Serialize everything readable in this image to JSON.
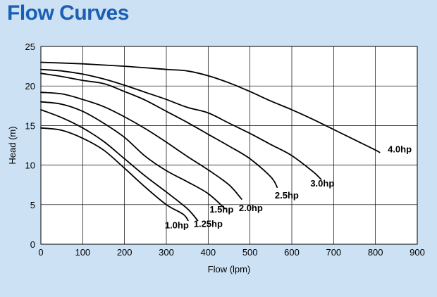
{
  "title": "Flow Curves",
  "chart_data": {
    "type": "line",
    "xlabel": "Flow (lpm)",
    "ylabel": "Head (m)",
    "xlim": [
      0,
      900
    ],
    "ylim": [
      0,
      25
    ],
    "xticks": [
      0,
      100,
      200,
      300,
      400,
      500,
      600,
      700,
      800,
      900
    ],
    "yticks": [
      0,
      5,
      10,
      15,
      20,
      25
    ],
    "grid": true,
    "line_color": "#000000",
    "grid_color": "#000000",
    "plot_background": "#ffffff",
    "page_background": "#cce1f4",
    "title_color": "#1a5fb4",
    "series": [
      {
        "name": "1.0hp",
        "x": [
          0,
          50,
          100,
          150,
          200,
          250,
          300,
          340,
          352
        ],
        "y": [
          14.7,
          14.4,
          13.4,
          11.9,
          9.6,
          7.2,
          5.0,
          3.8,
          3.0
        ]
      },
      {
        "name": "1.25hp",
        "x": [
          0,
          50,
          100,
          150,
          200,
          250,
          300,
          350,
          375
        ],
        "y": [
          17.0,
          16.0,
          14.7,
          13.0,
          10.8,
          8.6,
          6.6,
          4.5,
          3.0
        ]
      },
      {
        "name": "1.5hp",
        "x": [
          0,
          50,
          100,
          150,
          200,
          250,
          300,
          350,
          400,
          440
        ],
        "y": [
          18.0,
          17.7,
          16.8,
          15.3,
          13.5,
          11.1,
          9.3,
          7.9,
          6.4,
          4.5
        ]
      },
      {
        "name": "2.0hp",
        "x": [
          0,
          50,
          100,
          150,
          200,
          250,
          300,
          350,
          400,
          450,
          480
        ],
        "y": [
          19.2,
          19.0,
          18.3,
          17.4,
          16.1,
          14.6,
          12.9,
          11.1,
          9.4,
          7.5,
          5.7
        ]
      },
      {
        "name": "2.5hp",
        "x": [
          0,
          50,
          100,
          150,
          200,
          250,
          300,
          350,
          400,
          450,
          500,
          550,
          565
        ],
        "y": [
          21.6,
          21.2,
          20.7,
          20.3,
          19.3,
          18.2,
          16.8,
          15.4,
          13.9,
          12.4,
          10.8,
          8.5,
          7.2
        ]
      },
      {
        "name": "3.0hp",
        "x": [
          0,
          50,
          100,
          150,
          200,
          250,
          300,
          350,
          400,
          450,
          500,
          550,
          600,
          650,
          670
        ],
        "y": [
          22.1,
          21.9,
          21.5,
          20.9,
          20.1,
          19.2,
          18.3,
          17.3,
          16.6,
          15.3,
          14.0,
          12.6,
          11.2,
          9.2,
          8.2
        ]
      },
      {
        "name": "4.0hp",
        "x": [
          0,
          100,
          200,
          300,
          350,
          400,
          450,
          500,
          550,
          600,
          650,
          700,
          750,
          800,
          810
        ],
        "y": [
          23.0,
          22.8,
          22.5,
          22.1,
          21.9,
          21.3,
          20.4,
          19.3,
          18.1,
          17.0,
          15.8,
          14.5,
          13.2,
          11.9,
          11.6
        ]
      }
    ],
    "curve_labels": [
      {
        "series": "1.0hp",
        "text": "1.0hp",
        "at_x": 325,
        "at_y": 2.0
      },
      {
        "series": "1.25hp",
        "text": "1.25hp",
        "at_x": 400,
        "at_y": 2.2
      },
      {
        "series": "1.5hp",
        "text": "1.5hp",
        "at_x": 432,
        "at_y": 4.0
      },
      {
        "series": "2.0hp",
        "text": "2.0hp",
        "at_x": 502,
        "at_y": 4.2
      },
      {
        "series": "2.5hp",
        "text": "2.5hp",
        "at_x": 588,
        "at_y": 5.8
      },
      {
        "series": "3.0hp",
        "text": "3.0hp",
        "at_x": 673,
        "at_y": 7.3
      },
      {
        "series": "4.0hp",
        "text": "4.0hp",
        "at_x": 858,
        "at_y": 11.6
      }
    ]
  }
}
